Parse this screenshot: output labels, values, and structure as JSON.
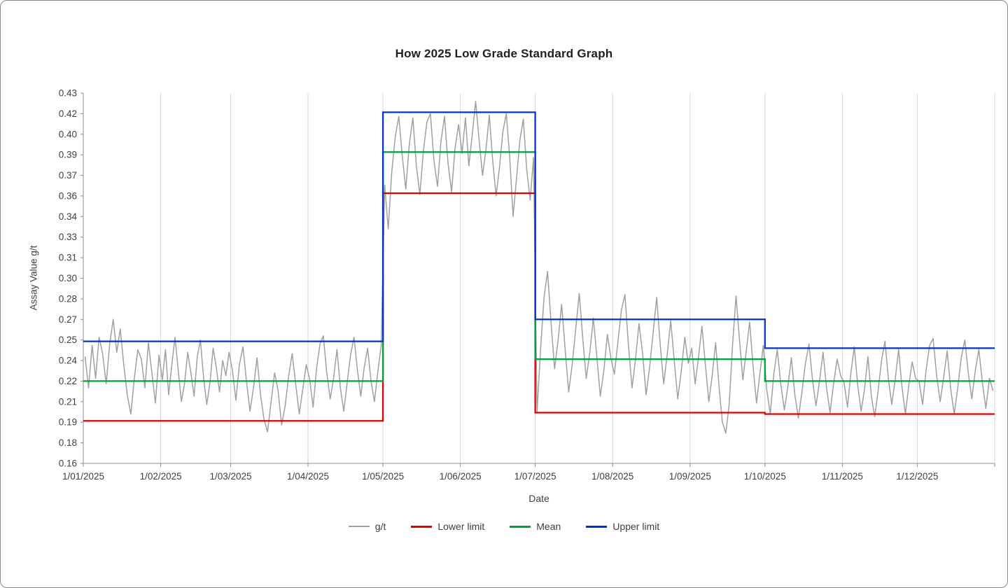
{
  "title": "How 2025 Low Grade Standard Graph",
  "axis_titles": {
    "y": "Assay Value g/t",
    "x": "Date"
  },
  "chart_data": {
    "type": "line",
    "title": "How 2025 Low Grade Standard Graph",
    "xlabel": "Date",
    "ylabel": "Assay Value g/t",
    "ylim": [
      0.16,
      0.43
    ],
    "y_major_unit": 0.015,
    "x_range_days": 365,
    "gridlines": "vertical-monthly",
    "legend_position": "bottom",
    "colors": {
      "grid": "#d6d6d6",
      "axis": "#8c8c8c",
      "tick_text": "#3f3f3f"
    },
    "month_starts": [
      0,
      31,
      59,
      90,
      120,
      151,
      181,
      212,
      243,
      273,
      304,
      334,
      365
    ],
    "y_ticks": [
      {
        "value": 0.16,
        "label": "0.16"
      },
      {
        "value": 0.175,
        "label": "0.18"
      },
      {
        "value": 0.19,
        "label": "0.19"
      },
      {
        "value": 0.205,
        "label": "0.21"
      },
      {
        "value": 0.22,
        "label": "0.22"
      },
      {
        "value": 0.235,
        "label": "0.24"
      },
      {
        "value": 0.25,
        "label": "0.25"
      },
      {
        "value": 0.265,
        "label": "0.27"
      },
      {
        "value": 0.28,
        "label": "0.28"
      },
      {
        "value": 0.295,
        "label": "0.30"
      },
      {
        "value": 0.31,
        "label": "0.31"
      },
      {
        "value": 0.325,
        "label": "0.33"
      },
      {
        "value": 0.34,
        "label": "0.34"
      },
      {
        "value": 0.355,
        "label": "0.36"
      },
      {
        "value": 0.37,
        "label": "0.37"
      },
      {
        "value": 0.385,
        "label": "0.39"
      },
      {
        "value": 0.4,
        "label": "0.40"
      },
      {
        "value": 0.415,
        "label": "0.42"
      },
      {
        "value": 0.43,
        "label": "0.43"
      }
    ],
    "x_ticks": [
      {
        "day": 0,
        "label": "1/01/2025"
      },
      {
        "day": 31,
        "label": "1/02/2025"
      },
      {
        "day": 59,
        "label": "1/03/2025"
      },
      {
        "day": 90,
        "label": "1/04/2025"
      },
      {
        "day": 120,
        "label": "1/05/2025"
      },
      {
        "day": 151,
        "label": "1/06/2025"
      },
      {
        "day": 181,
        "label": "1/07/2025"
      },
      {
        "day": 212,
        "label": "1/08/2025"
      },
      {
        "day": 243,
        "label": "1/09/2025"
      },
      {
        "day": 273,
        "label": "1/10/2025"
      },
      {
        "day": 304,
        "label": "1/11/2025"
      },
      {
        "day": 334,
        "label": "1/12/2025"
      }
    ],
    "series": [
      {
        "name": "g/t",
        "color": "#a0a0a0",
        "width": 1.5,
        "points_per_month": 22,
        "values": [
          0.238,
          0.215,
          0.246,
          0.222,
          0.252,
          0.24,
          0.218,
          0.247,
          0.265,
          0.241,
          0.258,
          0.232,
          0.21,
          0.196,
          0.222,
          0.243,
          0.236,
          0.215,
          0.248,
          0.226,
          0.204,
          0.239,
          0.221,
          0.243,
          0.21,
          0.232,
          0.252,
          0.228,
          0.205,
          0.218,
          0.241,
          0.226,
          0.209,
          0.238,
          0.25,
          0.222,
          0.203,
          0.219,
          0.244,
          0.23,
          0.212,
          0.235,
          0.224,
          0.241,
          0.228,
          0.206,
          0.232,
          0.245,
          0.22,
          0.198,
          0.215,
          0.237,
          0.21,
          0.192,
          0.183,
          0.205,
          0.226,
          0.213,
          0.188,
          0.202,
          0.224,
          0.24,
          0.218,
          0.196,
          0.214,
          0.232,
          0.221,
          0.201,
          0.229,
          0.247,
          0.253,
          0.226,
          0.207,
          0.222,
          0.243,
          0.215,
          0.198,
          0.219,
          0.239,
          0.252,
          0.228,
          0.209,
          0.23,
          0.244,
          0.22,
          0.205,
          0.227,
          0.246,
          0.363,
          0.331,
          0.372,
          0.398,
          0.413,
          0.384,
          0.36,
          0.393,
          0.412,
          0.377,
          0.356,
          0.388,
          0.409,
          0.415,
          0.381,
          0.362,
          0.395,
          0.413,
          0.379,
          0.358,
          0.39,
          0.407,
          0.386,
          0.412,
          0.377,
          0.4,
          0.424,
          0.396,
          0.37,
          0.388,
          0.414,
          0.381,
          0.355,
          0.376,
          0.402,
          0.415,
          0.383,
          0.34,
          0.368,
          0.396,
          0.411,
          0.374,
          0.352,
          0.383,
          0.197,
          0.243,
          0.281,
          0.3,
          0.262,
          0.229,
          0.25,
          0.276,
          0.243,
          0.212,
          0.232,
          0.258,
          0.284,
          0.251,
          0.222,
          0.241,
          0.266,
          0.238,
          0.209,
          0.228,
          0.254,
          0.237,
          0.225,
          0.249,
          0.272,
          0.283,
          0.246,
          0.215,
          0.236,
          0.262,
          0.24,
          0.21,
          0.23,
          0.255,
          0.281,
          0.247,
          0.218,
          0.239,
          0.264,
          0.235,
          0.207,
          0.227,
          0.252,
          0.233,
          0.244,
          0.218,
          0.238,
          0.26,
          0.232,
          0.205,
          0.224,
          0.248,
          0.216,
          0.19,
          0.182,
          0.203,
          0.247,
          0.282,
          0.251,
          0.221,
          0.242,
          0.263,
          0.231,
          0.204,
          0.225,
          0.246,
          0.214,
          0.196,
          0.225,
          0.243,
          0.218,
          0.199,
          0.216,
          0.237,
          0.21,
          0.193,
          0.212,
          0.233,
          0.247,
          0.221,
          0.202,
          0.22,
          0.241,
          0.215,
          0.197,
          0.218,
          0.236,
          0.224,
          0.219,
          0.201,
          0.226,
          0.245,
          0.217,
          0.198,
          0.214,
          0.238,
          0.209,
          0.194,
          0.213,
          0.235,
          0.249,
          0.222,
          0.203,
          0.221,
          0.243,
          0.216,
          0.196,
          0.217,
          0.234,
          0.222,
          0.22,
          0.203,
          0.228,
          0.246,
          0.251,
          0.224,
          0.205,
          0.223,
          0.242,
          0.214,
          0.196,
          0.215,
          0.237,
          0.25,
          0.226,
          0.207,
          0.228,
          0.243,
          0.219,
          0.2,
          0.222,
          0.213
        ]
      },
      {
        "name": "Lower limit",
        "color": "#e00000",
        "width": 2.25,
        "step": true,
        "boundaries_days": [
          0,
          120,
          181,
          273,
          365
        ],
        "levels": [
          0.191,
          0.357,
          0.197,
          0.196
        ]
      },
      {
        "name": "Mean",
        "color": "#00a03c",
        "width": 2.25,
        "step": true,
        "boundaries_days": [
          0,
          120,
          181,
          273,
          365
        ],
        "levels": [
          0.22,
          0.387,
          0.236,
          0.22
        ]
      },
      {
        "name": "Upper limit",
        "color": "#0033cc",
        "width": 2.25,
        "step": true,
        "boundaries_days": [
          0,
          120,
          181,
          273,
          365
        ],
        "levels": [
          0.249,
          0.416,
          0.265,
          0.244
        ]
      }
    ]
  }
}
